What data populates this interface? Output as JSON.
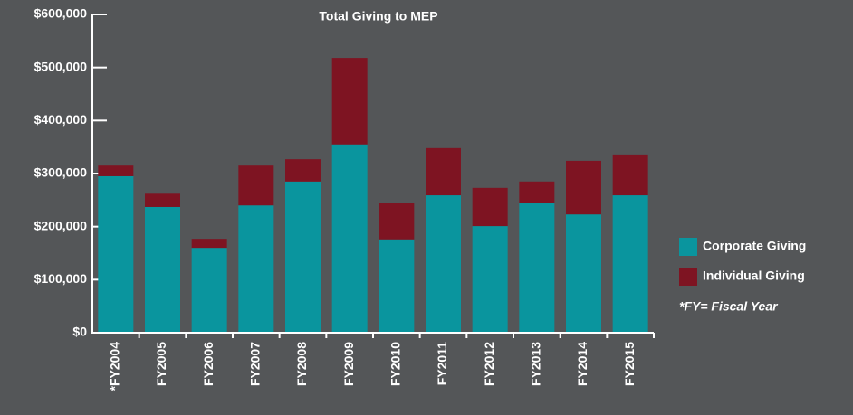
{
  "chart_data": {
    "type": "stacked_bar",
    "title": "Total Giving to MEP",
    "categories": [
      "*FY2004",
      "FY2005",
      "FY2006",
      "FY2007",
      "FY2008",
      "FY2009",
      "FY2010",
      "FY2011",
      "FY2012",
      "FY2013",
      "FY2014",
      "FY2015"
    ],
    "series": [
      {
        "name": "Corporate Giving",
        "color": "#0a959e",
        "values": [
          295000,
          237000,
          160000,
          240000,
          285000,
          355000,
          176000,
          259000,
          201000,
          244000,
          223000,
          259000
        ]
      },
      {
        "name": "Individual Giving",
        "color": "#7e1422",
        "values": [
          20000,
          25000,
          17000,
          75000,
          42000,
          163000,
          69000,
          89000,
          72000,
          41000,
          101000,
          77000
        ]
      }
    ],
    "ylim": [
      0,
      600000
    ],
    "yticks": [
      {
        "value": 0,
        "label": "$0"
      },
      {
        "value": 100000,
        "label": "$100,000"
      },
      {
        "value": 200000,
        "label": "$200,000"
      },
      {
        "value": 300000,
        "label": "$300,000"
      },
      {
        "value": 400000,
        "label": "$400,000"
      },
      {
        "value": 500000,
        "label": "$500,000"
      },
      {
        "value": 600000,
        "label": "$600,000"
      }
    ],
    "legend": "right",
    "annotation": "*FY= Fiscal Year"
  }
}
